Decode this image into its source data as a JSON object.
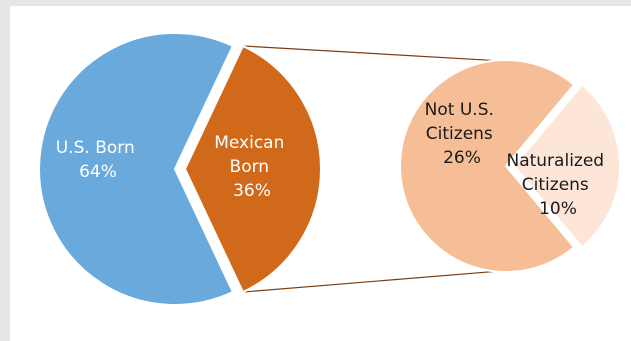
{
  "chart_data": {
    "type": "pie",
    "title": "",
    "main_pie": {
      "slices": [
        {
          "line1": "U.S. Born",
          "line2": "",
          "value_label": "64%",
          "value": 64
        },
        {
          "line1": "Mexican",
          "line2": "Born",
          "value_label": "36%",
          "value": 36
        }
      ]
    },
    "breakdown_pie": {
      "slices": [
        {
          "line1": "Not U.S.",
          "line2": "Citizens",
          "value_label": "26%",
          "value": 26
        },
        {
          "line1": "Naturalized",
          "line2": "Citizens",
          "value_label": "10%",
          "value": 10
        }
      ]
    },
    "colors": {
      "us_born": "#6aa9dc",
      "mexican_born": "#d1691a",
      "not_citizens": "#f6be96",
      "naturalized": "#fde5d7",
      "connector": "#7a3e12",
      "light_text": "#ffffff",
      "dark_text": "#1a1a1a"
    }
  }
}
